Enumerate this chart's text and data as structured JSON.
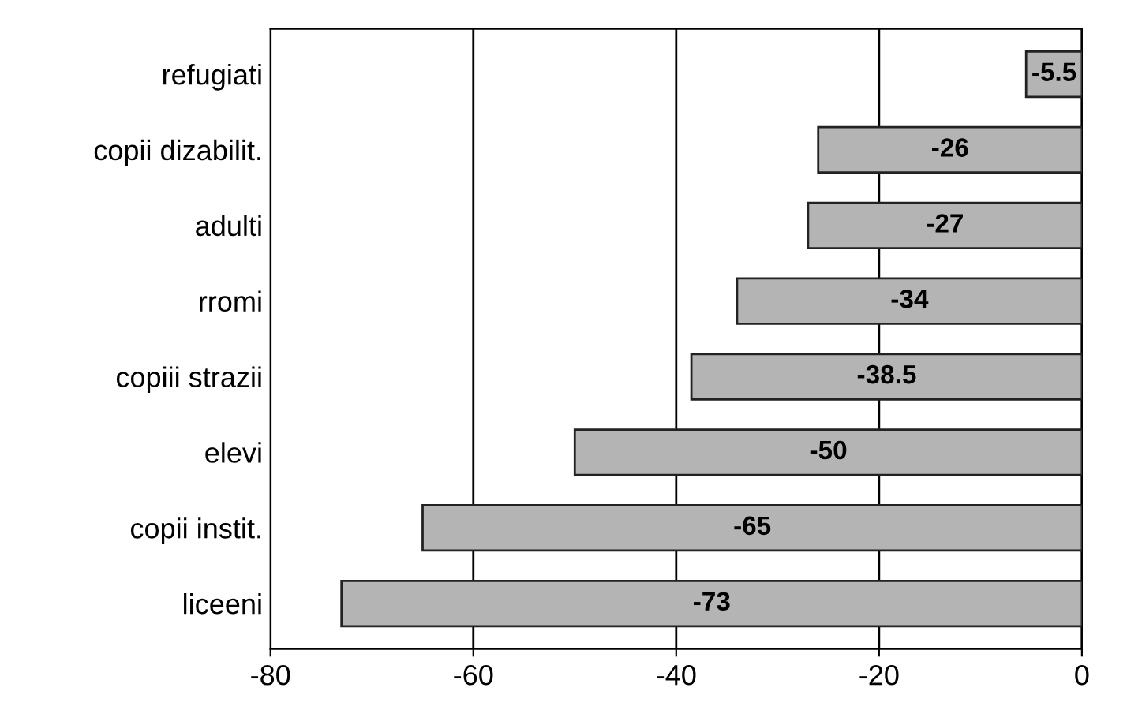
{
  "chart_data": {
    "type": "bar",
    "orientation": "horizontal",
    "categories": [
      "refugiati",
      "copii dizabilit.",
      "adulti",
      "rromi",
      "copiii strazii",
      "elevi",
      "copii instit.",
      "liceeni"
    ],
    "values": [
      -5.5,
      -26,
      -27,
      -34,
      -38.5,
      -50,
      -65,
      -73
    ],
    "color": "#b4b4b4",
    "xlim": [
      -80,
      0
    ],
    "xticks": [
      -80,
      -60,
      -40,
      -20,
      0
    ],
    "grid": "x",
    "data_labels": true
  }
}
